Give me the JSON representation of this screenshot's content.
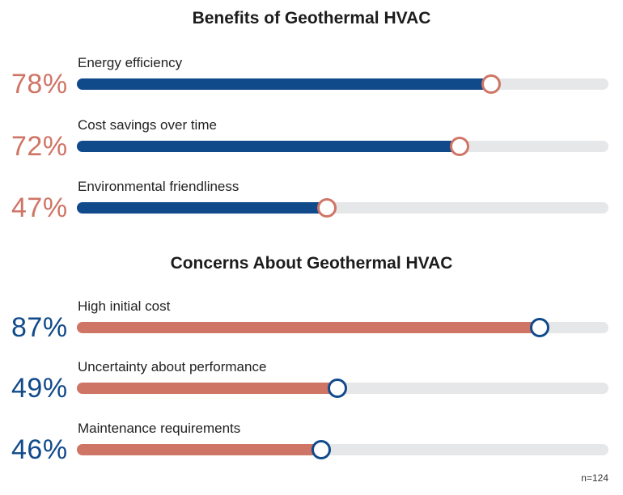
{
  "colors": {
    "blue": "#114a8b",
    "salmon": "#cf7566",
    "track": "#e6e7e8"
  },
  "chart_data": [
    {
      "type": "bar",
      "title": "Benefits of Geothermal HVAC",
      "categories": [
        "Energy efficiency",
        "Cost savings over time",
        "Environmental friendliness"
      ],
      "values": [
        78,
        72,
        47
      ],
      "value_labels": [
        "78%",
        "72%",
        "47%"
      ],
      "ylim": [
        0,
        100
      ],
      "bar_color": "#114a8b",
      "accent_color": "#cf7566"
    },
    {
      "type": "bar",
      "title": "Concerns About Geothermal HVAC",
      "categories": [
        "High initial cost",
        "Uncertainty about performance",
        "Maintenance requirements"
      ],
      "values": [
        87,
        49,
        46
      ],
      "value_labels": [
        "87%",
        "49%",
        "46%"
      ],
      "ylim": [
        0,
        100
      ],
      "bar_color": "#cf7566",
      "accent_color": "#114a8b"
    }
  ],
  "footnote": "n=124"
}
